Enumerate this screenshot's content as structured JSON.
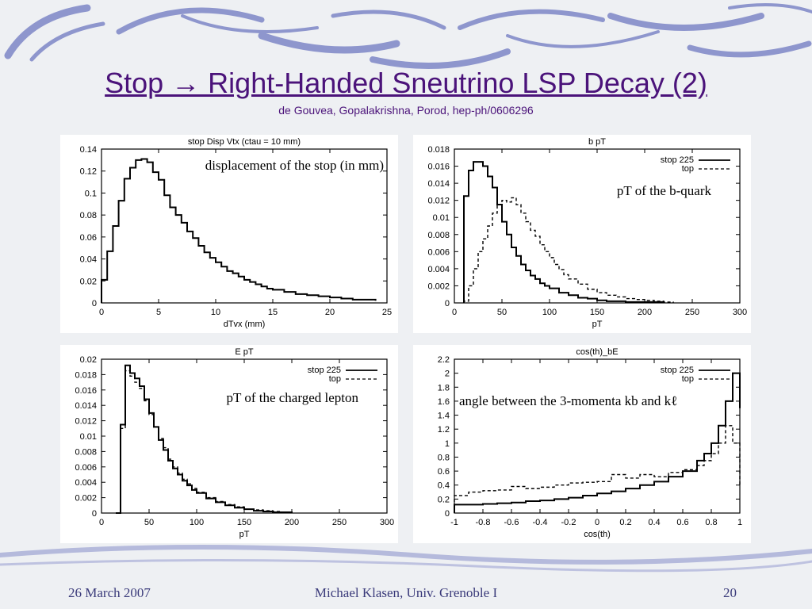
{
  "slide": {
    "title": "Stop → Right-Handed Sneutrino LSP Decay (2)",
    "subtitle": "de Gouvea, Gopalakrishna, Porod, hep-ph/0606296"
  },
  "footer": {
    "date": "26 March 2007",
    "author": "Michael Klasen, Univ. Grenoble I",
    "page": "20"
  },
  "chart_data": [
    {
      "type": "line",
      "title": "stop Disp Vtx (ctau = 10 mm)",
      "xlabel": "dTvx (mm)",
      "ylabel": "",
      "xlim": [
        0,
        25
      ],
      "ylim": [
        0,
        0.14
      ],
      "xticks": [
        "0",
        "5",
        "10",
        "15",
        "20",
        "25"
      ],
      "yticks": [
        "0",
        "0.02",
        "0.04",
        "0.06",
        "0.08",
        "0.1",
        "0.12",
        "0.14"
      ],
      "annotation": "displacement of the stop (in mm)",
      "legend": [],
      "series": [
        {
          "name": "",
          "style": "solid",
          "x": [
            0,
            0.5,
            1,
            1.5,
            2,
            2.5,
            3,
            3.5,
            4,
            4.5,
            5,
            5.5,
            6,
            6.5,
            7,
            7.5,
            8,
            8.5,
            9,
            9.5,
            10,
            10.5,
            11,
            11.5,
            12,
            12.5,
            13,
            13.5,
            14,
            14.5,
            15,
            16,
            17,
            18,
            19,
            20,
            21,
            22,
            23,
            24
          ],
          "y": [
            0.021,
            0.047,
            0.07,
            0.093,
            0.113,
            0.123,
            0.13,
            0.131,
            0.128,
            0.119,
            0.112,
            0.098,
            0.087,
            0.08,
            0.073,
            0.065,
            0.059,
            0.052,
            0.046,
            0.041,
            0.037,
            0.033,
            0.029,
            0.027,
            0.024,
            0.021,
            0.019,
            0.017,
            0.015,
            0.013,
            0.012,
            0.01,
            0.008,
            0.007,
            0.006,
            0.005,
            0.004,
            0.003,
            0.003,
            0.002
          ]
        }
      ]
    },
    {
      "type": "line",
      "title": "b pT",
      "xlabel": "pT",
      "ylabel": "",
      "xlim": [
        0,
        300
      ],
      "ylim": [
        0,
        0.018
      ],
      "xticks": [
        "0",
        "50",
        "100",
        "150",
        "200",
        "250",
        "300"
      ],
      "yticks": [
        "0",
        "0.002",
        "0.004",
        "0.006",
        "0.008",
        "0.01",
        "0.012",
        "0.014",
        "0.016",
        "0.018"
      ],
      "annotation": "pT of the b-quark",
      "legend": [
        "stop 225",
        "top"
      ],
      "series": [
        {
          "name": "stop 225",
          "style": "solid",
          "x": [
            10,
            15,
            20,
            25,
            30,
            35,
            40,
            45,
            50,
            55,
            60,
            65,
            70,
            75,
            80,
            85,
            90,
            95,
            100,
            110,
            120,
            130,
            140,
            150,
            160,
            170,
            180,
            190,
            200,
            220
          ],
          "y": [
            0.0125,
            0.0155,
            0.0165,
            0.0165,
            0.016,
            0.0148,
            0.0135,
            0.0115,
            0.0095,
            0.008,
            0.0065,
            0.0055,
            0.0045,
            0.0038,
            0.0032,
            0.0028,
            0.0023,
            0.002,
            0.0017,
            0.0012,
            0.0009,
            0.0006,
            0.0005,
            0.0003,
            0.0002,
            0.0002,
            0.0001,
            0.0001,
            0.0001,
            0
          ]
        },
        {
          "name": "top",
          "style": "dashed",
          "x": [
            10,
            15,
            20,
            25,
            30,
            35,
            40,
            45,
            50,
            55,
            60,
            65,
            70,
            75,
            80,
            85,
            90,
            95,
            100,
            105,
            110,
            115,
            120,
            130,
            140,
            150,
            160,
            170,
            180,
            190,
            200,
            210,
            220,
            230
          ],
          "y": [
            0.0002,
            0.002,
            0.004,
            0.006,
            0.0075,
            0.009,
            0.0105,
            0.0115,
            0.012,
            0.0118,
            0.0123,
            0.0115,
            0.0105,
            0.0095,
            0.0085,
            0.0078,
            0.0068,
            0.006,
            0.0053,
            0.0045,
            0.0039,
            0.0033,
            0.0028,
            0.0022,
            0.0016,
            0.0012,
            0.0009,
            0.0007,
            0.0005,
            0.0004,
            0.0003,
            0.0002,
            0.0001,
            0
          ]
        }
      ]
    },
    {
      "type": "line",
      "title": "E pT",
      "xlabel": "pT",
      "ylabel": "",
      "xlim": [
        0,
        300
      ],
      "ylim": [
        0,
        0.02
      ],
      "xticks": [
        "0",
        "50",
        "100",
        "150",
        "200",
        "250",
        "300"
      ],
      "yticks": [
        "0",
        "0.002",
        "0.004",
        "0.006",
        "0.008",
        "0.01",
        "0.012",
        "0.014",
        "0.016",
        "0.018",
        "0.02"
      ],
      "annotation": "pT of the charged lepton",
      "legend": [
        "stop 225",
        "top"
      ],
      "series": [
        {
          "name": "stop 225",
          "style": "solid",
          "x": [
            15,
            20,
            25,
            30,
            35,
            40,
            45,
            50,
            55,
            60,
            65,
            70,
            75,
            80,
            85,
            90,
            95,
            100,
            110,
            120,
            130,
            140,
            150,
            160,
            170,
            180,
            190,
            200
          ],
          "y": [
            0,
            0.0115,
            0.0192,
            0.0182,
            0.0175,
            0.0165,
            0.0148,
            0.013,
            0.0112,
            0.0095,
            0.0082,
            0.0068,
            0.0058,
            0.005,
            0.0042,
            0.0036,
            0.003,
            0.0026,
            0.0019,
            0.0014,
            0.001,
            0.0007,
            0.0005,
            0.0003,
            0.0002,
            0.0001,
            0.0001,
            0
          ]
        },
        {
          "name": "top",
          "style": "dashed",
          "x": [
            15,
            20,
            25,
            30,
            35,
            40,
            45,
            50,
            55,
            60,
            65,
            70,
            75,
            80,
            85,
            90,
            95,
            100,
            110,
            120,
            130,
            140,
            150,
            160,
            170,
            180,
            190,
            200
          ],
          "y": [
            0,
            0.011,
            0.0185,
            0.0178,
            0.017,
            0.0162,
            0.0146,
            0.0128,
            0.0112,
            0.0097,
            0.0085,
            0.007,
            0.006,
            0.0052,
            0.0044,
            0.0038,
            0.0032,
            0.0027,
            0.002,
            0.0015,
            0.0011,
            0.0008,
            0.0005,
            0.0004,
            0.0003,
            0.0002,
            0.0001,
            0
          ]
        }
      ]
    },
    {
      "type": "line",
      "title": "cos(th)_bE",
      "xlabel": "cos(th)",
      "ylabel": "",
      "xlim": [
        -1,
        1
      ],
      "ylim": [
        0,
        2.2
      ],
      "xticks": [
        "-1",
        "-0.8",
        "-0.6",
        "-0.4",
        "-0.2",
        "0",
        "0.2",
        "0.4",
        "0.6",
        "0.8",
        "1"
      ],
      "yticks": [
        "0",
        "0.2",
        "0.4",
        "0.6",
        "0.8",
        "1",
        "1.2",
        "1.4",
        "1.6",
        "1.8",
        "2",
        "2.2"
      ],
      "annotation": "angle between the 3-momenta kb and kℓ",
      "legend": [
        "stop 225",
        "top"
      ],
      "series": [
        {
          "name": "stop 225",
          "style": "solid",
          "x": [
            -1,
            -0.9,
            -0.8,
            -0.7,
            -0.6,
            -0.5,
            -0.4,
            -0.3,
            -0.2,
            -0.1,
            0,
            0.1,
            0.2,
            0.3,
            0.4,
            0.5,
            0.6,
            0.7,
            0.75,
            0.8,
            0.85,
            0.9,
            0.95,
            1
          ],
          "y": [
            0.12,
            0.12,
            0.13,
            0.14,
            0.15,
            0.17,
            0.18,
            0.2,
            0.22,
            0.25,
            0.28,
            0.31,
            0.35,
            0.4,
            0.45,
            0.52,
            0.6,
            0.75,
            0.85,
            1.0,
            1.25,
            1.6,
            2.0,
            1.5
          ]
        },
        {
          "name": "top",
          "style": "dashed",
          "x": [
            -1,
            -0.9,
            -0.8,
            -0.7,
            -0.6,
            -0.5,
            -0.4,
            -0.3,
            -0.2,
            -0.1,
            0,
            0.1,
            0.2,
            0.3,
            0.4,
            0.5,
            0.6,
            0.7,
            0.75,
            0.8,
            0.85,
            0.9,
            0.95,
            1
          ],
          "y": [
            0.25,
            0.3,
            0.32,
            0.33,
            0.38,
            0.35,
            0.37,
            0.4,
            0.43,
            0.44,
            0.45,
            0.55,
            0.5,
            0.55,
            0.52,
            0.58,
            0.62,
            0.68,
            0.75,
            0.85,
            1.0,
            1.25,
            1.0,
            0.4
          ]
        }
      ]
    }
  ]
}
